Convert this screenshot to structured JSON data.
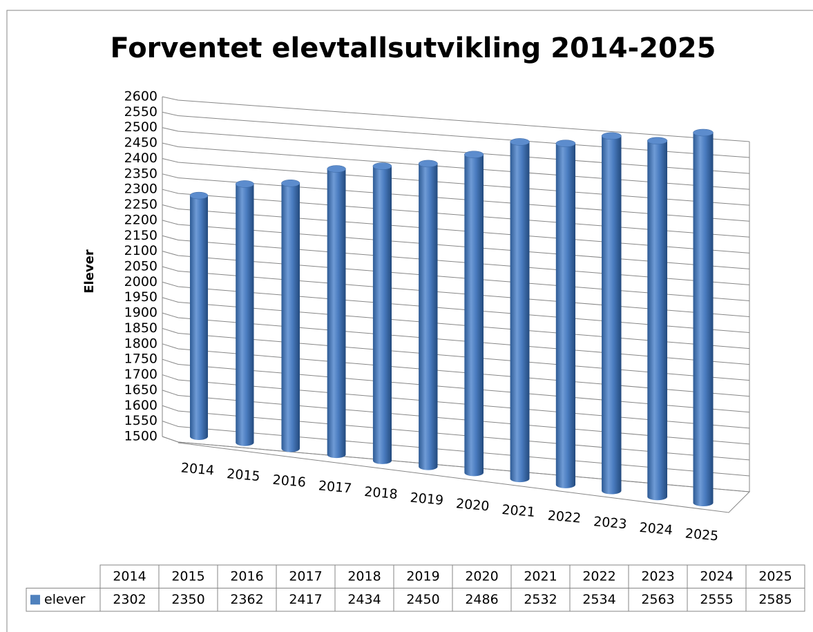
{
  "chart_data": {
    "type": "bar3d",
    "title": "Forventet elevtallsutvikling 2014-2025",
    "y_label": "Elever",
    "categories": [
      "2014",
      "2015",
      "2016",
      "2017",
      "2018",
      "2019",
      "2020",
      "2021",
      "2022",
      "2023",
      "2024",
      "2025"
    ],
    "series": [
      {
        "name": "elever",
        "color": "#4f81bd",
        "values": [
          2302,
          2350,
          2362,
          2417,
          2434,
          2450,
          2486,
          2532,
          2534,
          2563,
          2555,
          2585
        ]
      }
    ],
    "ylim": [
      1500,
      2600
    ],
    "yticks": [
      1500,
      1550,
      1600,
      1650,
      1700,
      1750,
      1800,
      1850,
      1900,
      1950,
      2000,
      2050,
      2100,
      2150,
      2200,
      2250,
      2300,
      2350,
      2400,
      2450,
      2500,
      2550,
      2600
    ],
    "grid": true,
    "data_table": true
  }
}
